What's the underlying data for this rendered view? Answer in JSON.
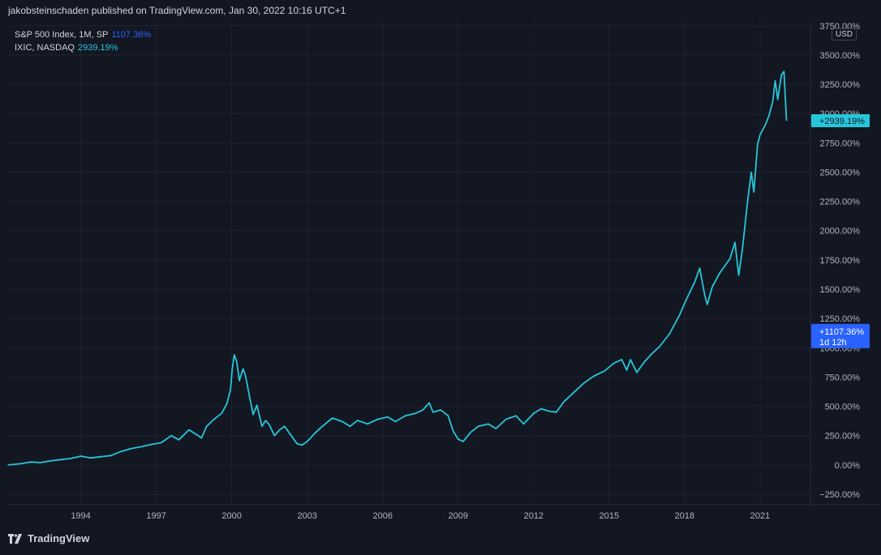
{
  "header": {
    "publish_line": "jakobsteinschaden published on TradingView.com, Jan 30, 2022 10:16 UTC+1"
  },
  "legend": [
    {
      "name": "S&P 500 Index, 1M, SP",
      "value": "1107.36%",
      "color": "#2962ff"
    },
    {
      "name": "IXIC, NASDAQ",
      "value": "2939.19%",
      "color": "#26c6da"
    }
  ],
  "currency": "USD",
  "price_tags": {
    "nasdaq": {
      "text": "+2939.19%",
      "value": 2939.19,
      "color": "#26c6da"
    },
    "sp500": {
      "text": "+1107.36%",
      "subtext": "1d 12h",
      "value": 1107.36,
      "color": "#2962ff"
    }
  },
  "footer": {
    "brand": "TradingView"
  },
  "colors": {
    "background": "#131722",
    "grid": "#1f2330",
    "text": "#d1d4dc",
    "line": "#26c6da"
  },
  "chart_data": {
    "type": "line",
    "x_axis_type": "time",
    "ylim": [
      -340,
      3790
    ],
    "xlim": [
      1991.08,
      2023.0
    ],
    "grid": true,
    "y_ticks": [
      {
        "value": 3750,
        "label": "3750.00%"
      },
      {
        "value": 3500,
        "label": "3500.00%"
      },
      {
        "value": 3250,
        "label": "3250.00%"
      },
      {
        "value": 3000,
        "label": "3000.00%"
      },
      {
        "value": 2750,
        "label": "2750.00%"
      },
      {
        "value": 2500,
        "label": "2500.00%"
      },
      {
        "value": 2250,
        "label": "2250.00%"
      },
      {
        "value": 2000,
        "label": "2000.00%"
      },
      {
        "value": 1750,
        "label": "1750.00%"
      },
      {
        "value": 1500,
        "label": "1500.00%"
      },
      {
        "value": 1250,
        "label": "1250.00%"
      },
      {
        "value": 1000,
        "label": "1000.00%"
      },
      {
        "value": 750,
        "label": "750.00%"
      },
      {
        "value": 500,
        "label": "500.00%"
      },
      {
        "value": 250,
        "label": "250.00%"
      },
      {
        "value": 0,
        "label": "0.00%"
      },
      {
        "value": -250,
        "label": "−250.00%"
      }
    ],
    "x_ticks": [
      {
        "value": 1994,
        "label": "1994"
      },
      {
        "value": 1997,
        "label": "1997"
      },
      {
        "value": 2000,
        "label": "2000"
      },
      {
        "value": 2003,
        "label": "2003"
      },
      {
        "value": 2006,
        "label": "2006"
      },
      {
        "value": 2009,
        "label": "2009"
      },
      {
        "value": 2012,
        "label": "2012"
      },
      {
        "value": 2015,
        "label": "2015"
      },
      {
        "value": 2018,
        "label": "2018"
      },
      {
        "value": 2021,
        "label": "2021"
      }
    ],
    "series": [
      {
        "name": "IXIC, NASDAQ",
        "color": "#26c6da",
        "points": [
          [
            1991.1,
            0
          ],
          [
            1991.6,
            10
          ],
          [
            1992.0,
            25
          ],
          [
            1992.4,
            20
          ],
          [
            1992.8,
            35
          ],
          [
            1993.2,
            45
          ],
          [
            1993.6,
            55
          ],
          [
            1994.0,
            75
          ],
          [
            1994.4,
            60
          ],
          [
            1994.8,
            70
          ],
          [
            1995.2,
            80
          ],
          [
            1995.6,
            115
          ],
          [
            1996.0,
            140
          ],
          [
            1996.4,
            155
          ],
          [
            1996.8,
            175
          ],
          [
            1997.2,
            190
          ],
          [
            1997.6,
            250
          ],
          [
            1997.9,
            215
          ],
          [
            1998.3,
            300
          ],
          [
            1998.6,
            260
          ],
          [
            1998.8,
            230
          ],
          [
            1999.0,
            330
          ],
          [
            1999.3,
            390
          ],
          [
            1999.6,
            440
          ],
          [
            1999.8,
            520
          ],
          [
            1999.95,
            640
          ],
          [
            2000.02,
            820
          ],
          [
            2000.1,
            940
          ],
          [
            2000.2,
            880
          ],
          [
            2000.3,
            720
          ],
          [
            2000.45,
            820
          ],
          [
            2000.55,
            760
          ],
          [
            2000.7,
            590
          ],
          [
            2000.85,
            430
          ],
          [
            2001.0,
            510
          ],
          [
            2001.2,
            330
          ],
          [
            2001.35,
            380
          ],
          [
            2001.5,
            340
          ],
          [
            2001.7,
            250
          ],
          [
            2001.9,
            300
          ],
          [
            2002.1,
            330
          ],
          [
            2002.4,
            240
          ],
          [
            2002.6,
            180
          ],
          [
            2002.8,
            170
          ],
          [
            2003.0,
            200
          ],
          [
            2003.3,
            270
          ],
          [
            2003.6,
            330
          ],
          [
            2004.0,
            400
          ],
          [
            2004.4,
            370
          ],
          [
            2004.7,
            330
          ],
          [
            2005.0,
            380
          ],
          [
            2005.4,
            350
          ],
          [
            2005.8,
            390
          ],
          [
            2006.2,
            410
          ],
          [
            2006.5,
            370
          ],
          [
            2006.9,
            420
          ],
          [
            2007.3,
            440
          ],
          [
            2007.6,
            470
          ],
          [
            2007.85,
            530
          ],
          [
            2008.0,
            450
          ],
          [
            2008.3,
            470
          ],
          [
            2008.6,
            420
          ],
          [
            2008.8,
            290
          ],
          [
            2009.0,
            220
          ],
          [
            2009.2,
            200
          ],
          [
            2009.5,
            280
          ],
          [
            2009.8,
            330
          ],
          [
            2010.2,
            350
          ],
          [
            2010.5,
            310
          ],
          [
            2010.9,
            390
          ],
          [
            2011.3,
            420
          ],
          [
            2011.6,
            350
          ],
          [
            2012.0,
            440
          ],
          [
            2012.3,
            480
          ],
          [
            2012.6,
            460
          ],
          [
            2012.9,
            450
          ],
          [
            2013.2,
            540
          ],
          [
            2013.6,
            620
          ],
          [
            2014.0,
            700
          ],
          [
            2014.4,
            760
          ],
          [
            2014.8,
            800
          ],
          [
            2015.2,
            870
          ],
          [
            2015.5,
            900
          ],
          [
            2015.7,
            810
          ],
          [
            2015.85,
            900
          ],
          [
            2016.1,
            790
          ],
          [
            2016.4,
            880
          ],
          [
            2016.7,
            950
          ],
          [
            2017.0,
            1010
          ],
          [
            2017.4,
            1120
          ],
          [
            2017.8,
            1280
          ],
          [
            2018.0,
            1380
          ],
          [
            2018.15,
            1450
          ],
          [
            2018.4,
            1560
          ],
          [
            2018.6,
            1680
          ],
          [
            2018.8,
            1450
          ],
          [
            2018.9,
            1370
          ],
          [
            2019.1,
            1520
          ],
          [
            2019.4,
            1640
          ],
          [
            2019.6,
            1700
          ],
          [
            2019.8,
            1760
          ],
          [
            2020.0,
            1900
          ],
          [
            2020.15,
            1620
          ],
          [
            2020.3,
            1850
          ],
          [
            2020.5,
            2250
          ],
          [
            2020.65,
            2500
          ],
          [
            2020.75,
            2330
          ],
          [
            2020.9,
            2740
          ],
          [
            2021.0,
            2820
          ],
          [
            2021.2,
            2900
          ],
          [
            2021.35,
            2980
          ],
          [
            2021.5,
            3100
          ],
          [
            2021.6,
            3280
          ],
          [
            2021.7,
            3120
          ],
          [
            2021.85,
            3330
          ],
          [
            2021.95,
            3360
          ],
          [
            2022.05,
            2939.19
          ]
        ]
      }
    ]
  }
}
